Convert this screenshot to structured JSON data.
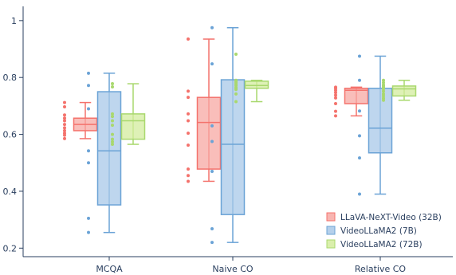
{
  "chart_data": {
    "type": "box",
    "categories": [
      "MCQA",
      "Naive CO",
      "Relative CO"
    ],
    "ylim": [
      0.17,
      1.05
    ],
    "yticks": [
      0.2,
      0.4,
      0.6,
      0.8,
      1
    ],
    "ytick_labels": [
      "0.2",
      "0.4",
      "0.6",
      "0.8",
      "1"
    ],
    "grid": false,
    "legend_position": "bottom-right",
    "series": [
      {
        "name": "LLaVA-NeXT-Video (32B)",
        "stroke": "#f4726c",
        "fill": "#f7a8a3",
        "boxes": [
          {
            "min": 0.585,
            "q1": 0.613,
            "median": 0.635,
            "q3": 0.657,
            "max": 0.712,
            "points": [
              0.712,
              0.697,
              0.668,
              0.657,
              0.648,
              0.635,
              0.623,
              0.613,
              0.604,
              0.597,
              0.585
            ]
          },
          {
            "min": 0.435,
            "q1": 0.478,
            "median": 0.642,
            "q3": 0.73,
            "max": 0.935,
            "points": [
              0.935,
              0.752,
              0.73,
              0.672,
              0.648,
              0.604,
              0.562,
              0.478,
              0.455,
              0.435
            ]
          },
          {
            "min": 0.665,
            "q1": 0.708,
            "median": 0.755,
            "q3": 0.762,
            "max": 0.766,
            "points": [
              0.766,
              0.762,
              0.755,
              0.747,
              0.738,
              0.728,
              0.708,
              0.681,
              0.665
            ]
          }
        ]
      },
      {
        "name": "VideoLLaMA2 (7B)",
        "stroke": "#6ba3d6",
        "fill": "#a8c8e8",
        "boxes": [
          {
            "min": 0.255,
            "q1": 0.352,
            "median": 0.542,
            "q3": 0.75,
            "max": 0.815,
            "points": [
              0.815,
              0.772,
              0.69,
              0.542,
              0.5,
              0.305,
              0.255
            ]
          },
          {
            "min": 0.22,
            "q1": 0.318,
            "median": 0.565,
            "q3": 0.792,
            "max": 0.975,
            "points": [
              0.975,
              0.848,
              0.63,
              0.575,
              0.47,
              0.268,
              0.22
            ]
          },
          {
            "min": 0.39,
            "q1": 0.535,
            "median": 0.622,
            "q3": 0.762,
            "max": 0.875,
            "points": [
              0.875,
              0.79,
              0.682,
              0.595,
              0.517,
              0.39
            ]
          }
        ]
      },
      {
        "name": "VideoLLaMA2 (72B)",
        "stroke": "#a9d86e",
        "fill": "#d3ec9e",
        "boxes": [
          {
            "min": 0.565,
            "q1": 0.583,
            "median": 0.648,
            "q3": 0.672,
            "max": 0.778,
            "points": [
              0.778,
              0.767,
              0.672,
              0.663,
              0.648,
              0.632,
              0.6,
              0.583,
              0.574,
              0.565
            ]
          },
          {
            "min": 0.715,
            "q1": 0.762,
            "median": 0.772,
            "q3": 0.787,
            "max": 0.79,
            "points": [
              0.882,
              0.79,
              0.787,
              0.782,
              0.776,
              0.772,
              0.765,
              0.762,
              0.758,
              0.742,
              0.715
            ]
          },
          {
            "min": 0.72,
            "q1": 0.735,
            "median": 0.76,
            "q3": 0.77,
            "max": 0.79,
            "points": [
              0.79,
              0.782,
              0.774,
              0.77,
              0.765,
              0.76,
              0.752,
              0.742,
              0.735,
              0.727,
              0.72
            ]
          }
        ]
      }
    ]
  },
  "colors": {
    "axis": "#2a3f5f",
    "tick_text": "#2a3f5f",
    "background": "#ffffff"
  }
}
